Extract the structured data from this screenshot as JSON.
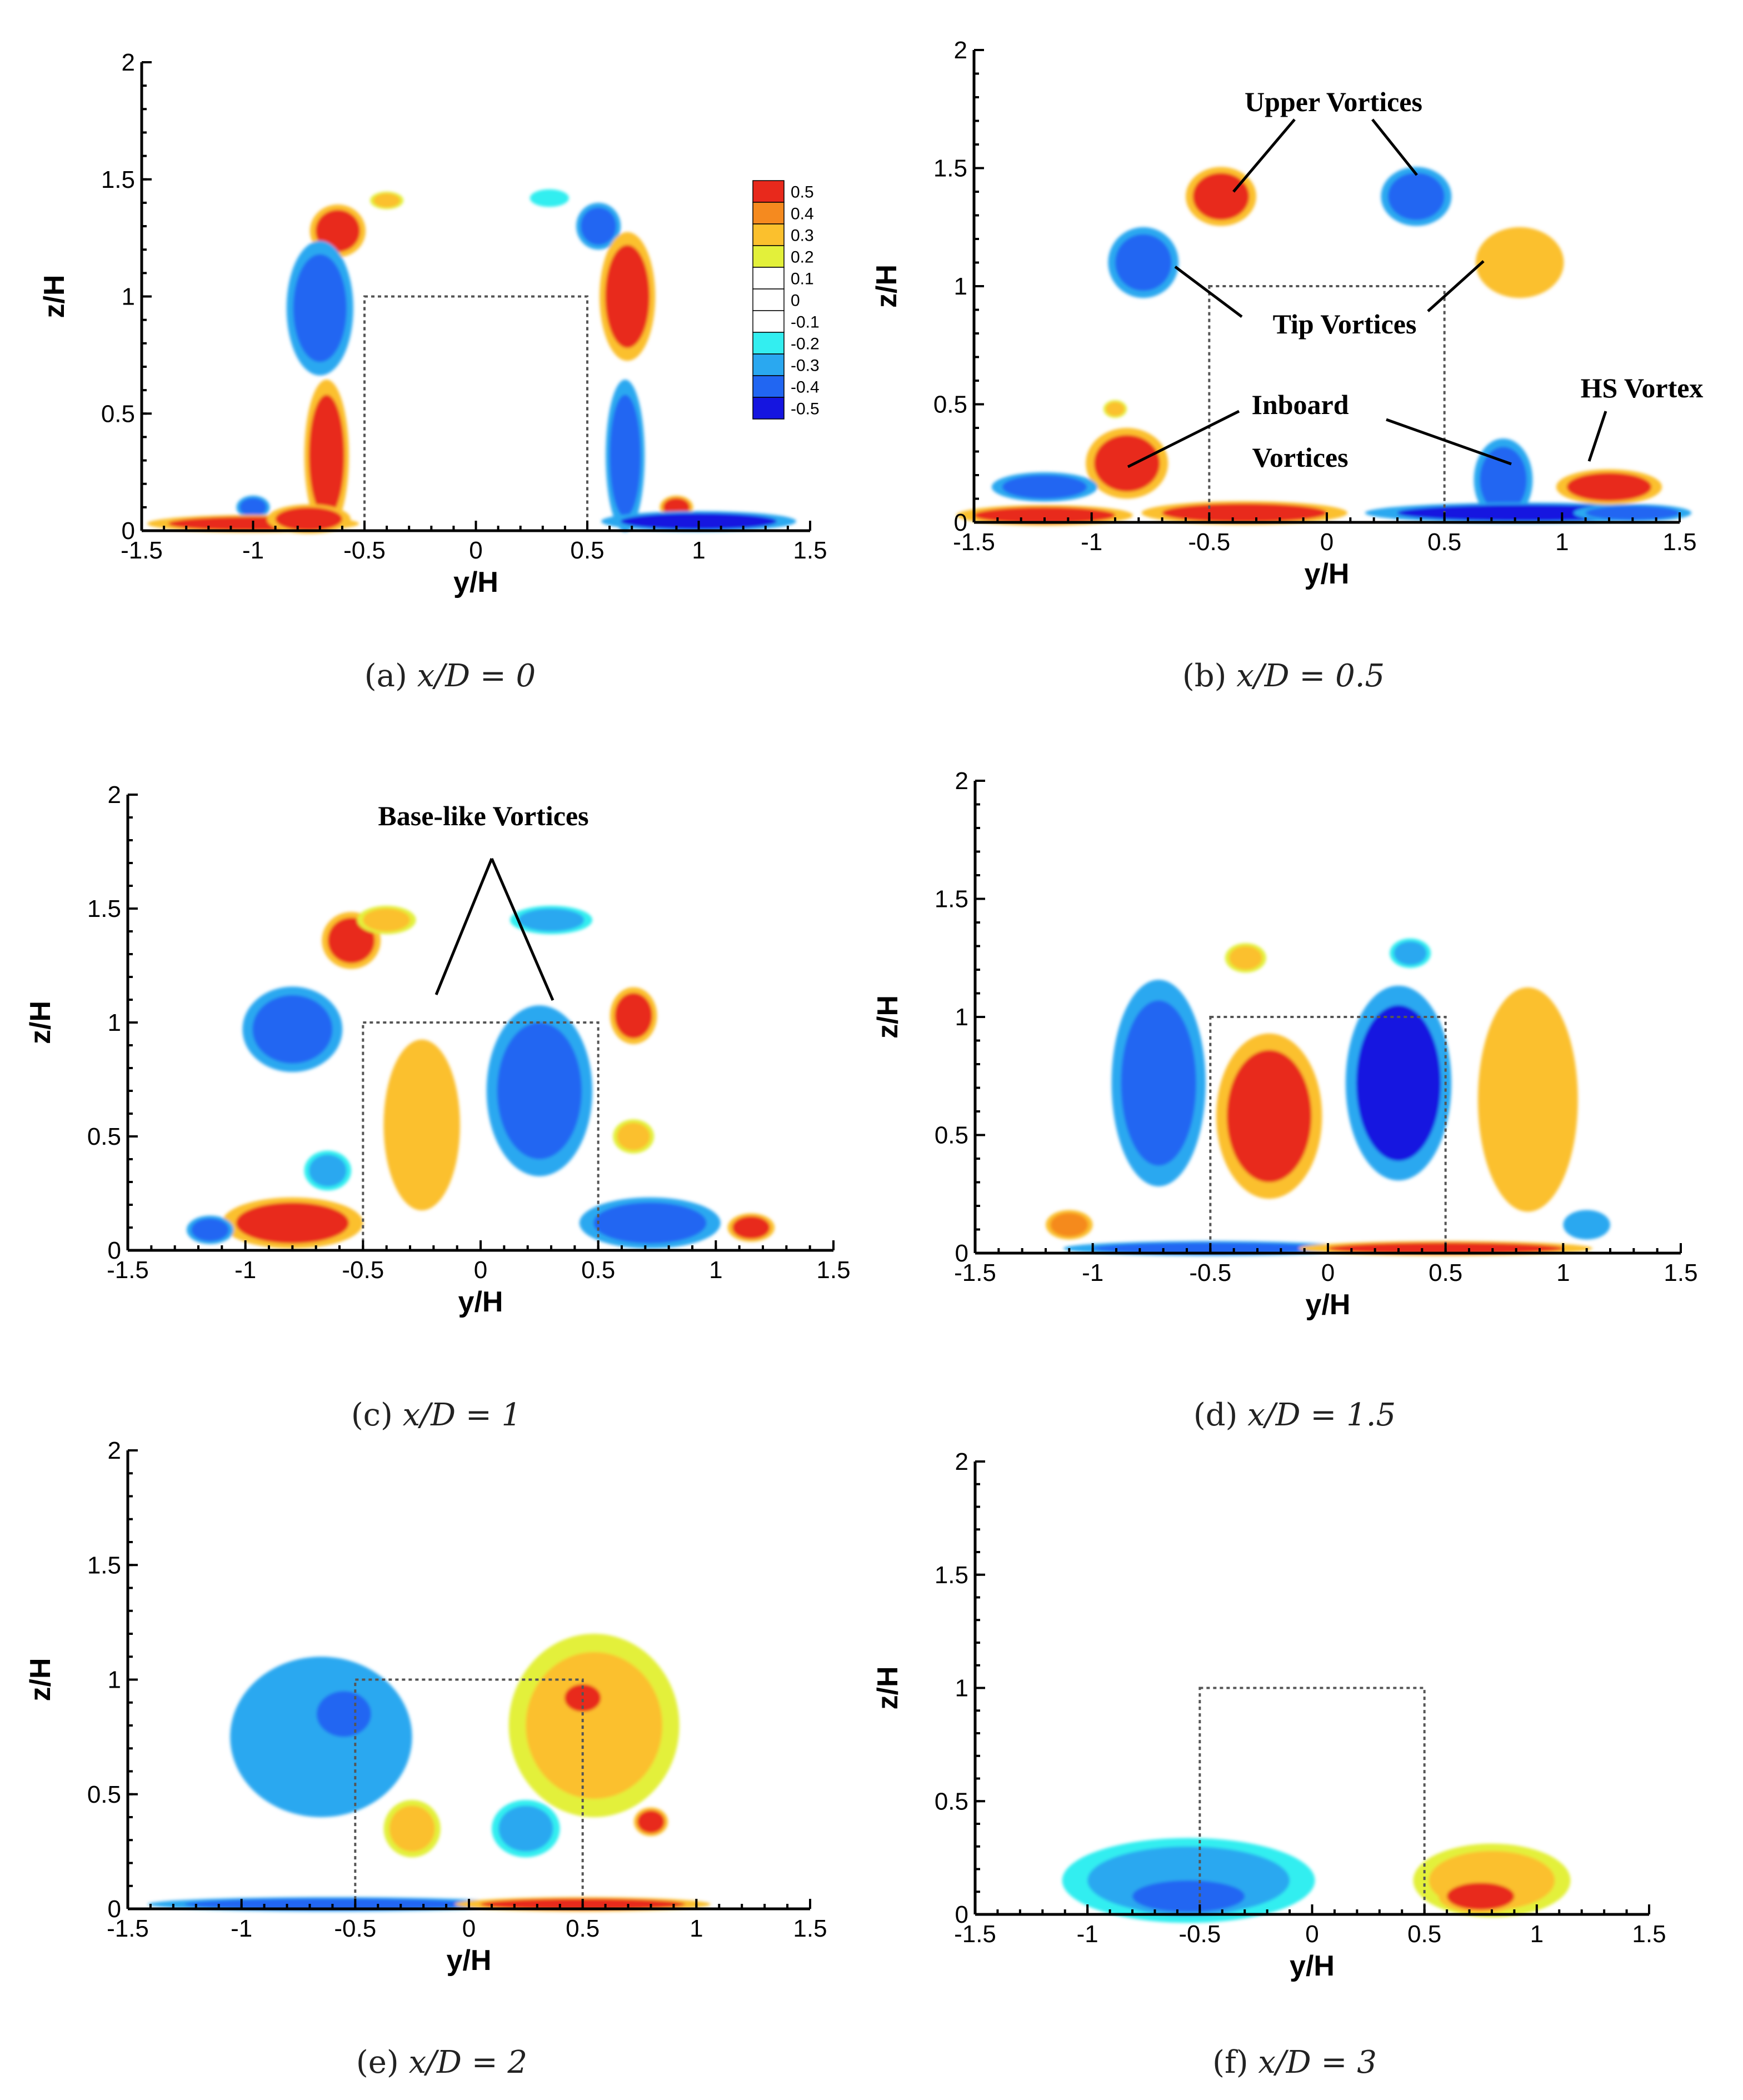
{
  "figure": {
    "panels": [
      {
        "id": "a",
        "caption_prefix": "(a) ",
        "caption_math": "x/D = 0",
        "xlabel": "y/H",
        "ylabel": "z/H"
      },
      {
        "id": "b",
        "caption_prefix": "(b) ",
        "caption_math": "x/D = 0.5",
        "xlabel": "y/H",
        "ylabel": "z/H"
      },
      {
        "id": "c",
        "caption_prefix": "(c) ",
        "caption_math": "x/D = 1",
        "xlabel": "y/H",
        "ylabel": "z/H"
      },
      {
        "id": "d",
        "caption_prefix": "(d) ",
        "caption_math": "x/D = 1.5",
        "xlabel": "y/H",
        "ylabel": "z/H"
      },
      {
        "id": "e",
        "caption_prefix": "(e) ",
        "caption_math": "x/D = 2",
        "xlabel": "y/H",
        "ylabel": "z/H"
      },
      {
        "id": "f",
        "caption_prefix": "(f) ",
        "caption_math": "x/D = 3",
        "xlabel": "y/H",
        "ylabel": "z/H"
      }
    ],
    "annotations": {
      "upper_vortices": "Upper Vortices",
      "tip_vortices": "Tip Vortices",
      "inboard_line1": "Inboard",
      "inboard_line2": "Vortices",
      "hs_vortex": "HS Vortex",
      "base_like_vortices": "Base-like Vortices"
    },
    "legend": {
      "levels": [
        "0.5",
        "0.4",
        "0.3",
        "0.2",
        "0.1",
        "0",
        "-0.1",
        "-0.2",
        "-0.3",
        "-0.4",
        "-0.5"
      ],
      "colors": [
        "#e8291c",
        "#f58a1f",
        "#fbc02d",
        "#e3f03a",
        "#ffffff",
        "#ffffff",
        "#ffffff",
        "#33eef0",
        "#2aa8f0",
        "#2166f2",
        "#1515e0"
      ]
    }
  },
  "chart_data": [
    {
      "panel": "a",
      "type": "heatmap",
      "title": "(a) x/D = 0",
      "xlabel": "y/H",
      "ylabel": "z/H",
      "xlim": [
        -1.5,
        1.5
      ],
      "ylim": [
        0,
        2
      ],
      "xticks": [
        "-1.5",
        "-1",
        "-0.5",
        "0",
        "0.5",
        "1",
        "1.5"
      ],
      "yticks": [
        "0",
        "0.5",
        "1",
        "1.5",
        "2"
      ],
      "model_box": {
        "y": [
          -0.5,
          0.5
        ],
        "z": [
          0,
          1
        ]
      },
      "colorbar_levels": [
        0.5,
        0.4,
        0.3,
        0.2,
        0.1,
        0,
        -0.1,
        -0.2,
        -0.3,
        -0.4,
        -0.5
      ],
      "blobs": [
        {
          "y": -0.62,
          "z": 1.28,
          "w": 0.1,
          "h": 0.09,
          "value": 0.45
        },
        {
          "y": -0.4,
          "z": 1.41,
          "w": 0.06,
          "h": 0.03,
          "value": 0.25
        },
        {
          "y": -0.7,
          "z": 0.95,
          "w": 0.12,
          "h": 0.23,
          "value": -0.45
        },
        {
          "y": -0.67,
          "z": 0.32,
          "w": 0.08,
          "h": 0.26,
          "value": 0.5
        },
        {
          "y": -1.0,
          "z": 0.1,
          "w": 0.06,
          "h": 0.04,
          "value": -0.4
        },
        {
          "y": -1.0,
          "z": 0.03,
          "w": 0.38,
          "h": 0.03,
          "value": 0.5
        },
        {
          "y": -0.75,
          "z": 0.05,
          "w": 0.15,
          "h": 0.05,
          "value": 0.5
        },
        {
          "y": 0.55,
          "z": 1.3,
          "w": 0.08,
          "h": 0.08,
          "value": -0.45
        },
        {
          "y": 0.33,
          "z": 1.42,
          "w": 0.07,
          "h": 0.03,
          "value": -0.25
        },
        {
          "y": 0.68,
          "z": 1.0,
          "w": 0.1,
          "h": 0.22,
          "value": 0.5
        },
        {
          "y": 0.67,
          "z": 0.32,
          "w": 0.07,
          "h": 0.26,
          "value": -0.45
        },
        {
          "y": 0.9,
          "z": 0.1,
          "w": 0.06,
          "h": 0.04,
          "value": 0.45
        },
        {
          "y": 1.0,
          "z": 0.04,
          "w": 0.35,
          "h": 0.035,
          "value": -0.5
        }
      ]
    },
    {
      "panel": "b",
      "type": "heatmap",
      "title": "(b) x/D = 0.5",
      "xlabel": "y/H",
      "ylabel": "z/H",
      "xlim": [
        -1.5,
        1.5
      ],
      "ylim": [
        0,
        2
      ],
      "xticks": [
        "-1.5",
        "-1",
        "-0.5",
        "0",
        "0.5",
        "1",
        "1.5"
      ],
      "yticks": [
        "0",
        "0.5",
        "1",
        "1.5",
        "2"
      ],
      "model_box": {
        "y": [
          -0.5,
          0.5
        ],
        "z": [
          0,
          1
        ]
      },
      "blobs": [
        {
          "y": -0.45,
          "z": 1.38,
          "w": 0.12,
          "h": 0.1,
          "value": 0.45
        },
        {
          "y": -0.78,
          "z": 1.1,
          "w": 0.12,
          "h": 0.12,
          "value": -0.4
        },
        {
          "y": 0.38,
          "z": 1.38,
          "w": 0.12,
          "h": 0.1,
          "value": -0.4
        },
        {
          "y": 0.82,
          "z": 1.1,
          "w": 0.15,
          "h": 0.12,
          "value": 0.35
        },
        {
          "y": -0.85,
          "z": 0.25,
          "w": 0.14,
          "h": 0.12,
          "value": 0.5
        },
        {
          "y": -0.9,
          "z": 0.48,
          "w": 0.04,
          "h": 0.03,
          "value": 0.3
        },
        {
          "y": -1.2,
          "z": 0.15,
          "w": 0.18,
          "h": 0.05,
          "value": -0.45
        },
        {
          "y": -1.2,
          "z": 0.03,
          "w": 0.3,
          "h": 0.035,
          "value": 0.5
        },
        {
          "y": -0.35,
          "z": 0.04,
          "w": 0.35,
          "h": 0.04,
          "value": 0.5
        },
        {
          "y": 0.75,
          "z": 0.18,
          "w": 0.1,
          "h": 0.14,
          "value": -0.4
        },
        {
          "y": 0.85,
          "z": 0.04,
          "w": 0.55,
          "h": 0.035,
          "value": -0.5
        },
        {
          "y": 1.2,
          "z": 0.15,
          "w": 0.18,
          "h": 0.06,
          "value": 0.5
        },
        {
          "y": 1.3,
          "z": 0.04,
          "w": 0.2,
          "h": 0.03,
          "value": -0.45
        }
      ]
    },
    {
      "panel": "c",
      "type": "heatmap",
      "title": "(c) x/D = 1",
      "xlabel": "y/H",
      "ylabel": "z/H",
      "xlim": [
        -1.5,
        1.5
      ],
      "ylim": [
        0,
        2
      ],
      "xticks": [
        "-1.5",
        "-1",
        "-0.5",
        "0",
        "0.5",
        "1",
        "1.5"
      ],
      "yticks": [
        "0",
        "0.5",
        "1",
        "1.5",
        "2"
      ],
      "model_box": {
        "y": [
          -0.5,
          0.5
        ],
        "z": [
          0,
          1
        ]
      },
      "blobs": [
        {
          "y": -0.55,
          "z": 1.36,
          "w": 0.1,
          "h": 0.1,
          "value": 0.45
        },
        {
          "y": -0.4,
          "z": 1.45,
          "w": 0.1,
          "h": 0.05,
          "value": 0.25
        },
        {
          "y": 0.3,
          "z": 1.45,
          "w": 0.14,
          "h": 0.05,
          "value": -0.3
        },
        {
          "y": -0.8,
          "z": 0.97,
          "w": 0.17,
          "h": 0.15,
          "value": -0.45
        },
        {
          "y": -0.65,
          "z": 0.35,
          "w": 0.08,
          "h": 0.07,
          "value": -0.3
        },
        {
          "y": -0.25,
          "z": 0.55,
          "w": 0.13,
          "h": 0.3,
          "value": 0.35
        },
        {
          "y": 0.25,
          "z": 0.7,
          "w": 0.18,
          "h": 0.3,
          "value": -0.45
        },
        {
          "y": 0.65,
          "z": 1.03,
          "w": 0.08,
          "h": 0.1,
          "value": 0.45
        },
        {
          "y": -0.8,
          "z": 0.12,
          "w": 0.24,
          "h": 0.09,
          "value": 0.5
        },
        {
          "y": -1.15,
          "z": 0.09,
          "w": 0.08,
          "h": 0.05,
          "value": -0.45
        },
        {
          "y": 0.72,
          "z": 0.12,
          "w": 0.24,
          "h": 0.09,
          "value": -0.45
        },
        {
          "y": 1.15,
          "z": 0.1,
          "w": 0.08,
          "h": 0.05,
          "value": 0.45
        },
        {
          "y": 0.65,
          "z": 0.5,
          "w": 0.07,
          "h": 0.06,
          "value": 0.25
        }
      ]
    },
    {
      "panel": "d",
      "type": "heatmap",
      "title": "(d) x/D = 1.5",
      "xlabel": "y/H",
      "ylabel": "z/H",
      "xlim": [
        -1.5,
        1.5
      ],
      "ylim": [
        0,
        2
      ],
      "xticks": [
        "-1.5",
        "-1",
        "-0.5",
        "0",
        "0.5",
        "1",
        "1.5"
      ],
      "yticks": [
        "0",
        "0.5",
        "1",
        "1.5",
        "2"
      ],
      "model_box": {
        "y": [
          -0.5,
          0.5
        ],
        "z": [
          0,
          1
        ]
      },
      "blobs": [
        {
          "y": -0.72,
          "z": 0.72,
          "w": 0.16,
          "h": 0.35,
          "value": -0.45
        },
        {
          "y": -0.25,
          "z": 0.58,
          "w": 0.18,
          "h": 0.28,
          "value": 0.5
        },
        {
          "y": 0.3,
          "z": 0.72,
          "w": 0.18,
          "h": 0.33,
          "value": -0.5
        },
        {
          "y": 0.85,
          "z": 0.65,
          "w": 0.17,
          "h": 0.38,
          "value": 0.35
        },
        {
          "y": -0.35,
          "z": 1.25,
          "w": 0.07,
          "h": 0.05,
          "value": 0.3
        },
        {
          "y": 0.35,
          "z": 1.27,
          "w": 0.07,
          "h": 0.05,
          "value": -0.3
        },
        {
          "y": -1.1,
          "z": 0.12,
          "w": 0.08,
          "h": 0.05,
          "value": 0.4
        },
        {
          "y": 1.1,
          "z": 0.12,
          "w": 0.08,
          "h": 0.05,
          "value": -0.35
        },
        {
          "y": -0.5,
          "z": 0.02,
          "w": 0.5,
          "h": 0.025,
          "value": -0.45
        },
        {
          "y": 0.5,
          "z": 0.02,
          "w": 0.5,
          "h": 0.025,
          "value": 0.5
        }
      ]
    },
    {
      "panel": "e",
      "type": "heatmap",
      "title": "(e) x/D = 2",
      "xlabel": "y/H",
      "ylabel": "z/H",
      "xlim": [
        -1.5,
        1.5
      ],
      "ylim": [
        0,
        2
      ],
      "xticks": [
        "-1.5",
        "-1",
        "-0.5",
        "0",
        "0.5",
        "1",
        "1.5"
      ],
      "yticks": [
        "0",
        "0.5",
        "1",
        "1.5",
        "2"
      ],
      "model_box": {
        "y": [
          -0.5,
          0.5
        ],
        "z": [
          0,
          1
        ]
      },
      "blobs": [
        {
          "y": -0.65,
          "z": 0.75,
          "w": 0.32,
          "h": 0.28,
          "value": -0.35
        },
        {
          "y": -0.55,
          "z": 0.85,
          "w": 0.12,
          "h": 0.1,
          "value": -0.45
        },
        {
          "y": 0.55,
          "z": 0.8,
          "w": 0.3,
          "h": 0.32,
          "value": 0.3
        },
        {
          "y": 0.5,
          "z": 0.92,
          "w": 0.08,
          "h": 0.06,
          "value": 0.5
        },
        {
          "y": 0.8,
          "z": 0.38,
          "w": 0.06,
          "h": 0.05,
          "value": 0.45
        },
        {
          "y": -0.25,
          "z": 0.35,
          "w": 0.1,
          "h": 0.1,
          "value": 0.25
        },
        {
          "y": 0.25,
          "z": 0.35,
          "w": 0.12,
          "h": 0.1,
          "value": -0.3
        },
        {
          "y": -0.6,
          "z": 0.02,
          "w": 0.65,
          "h": 0.025,
          "value": -0.45
        },
        {
          "y": 0.5,
          "z": 0.02,
          "w": 0.45,
          "h": 0.025,
          "value": 0.5
        }
      ]
    },
    {
      "panel": "f",
      "type": "heatmap",
      "title": "(f) x/D = 3",
      "xlabel": "y/H",
      "ylabel": "z/H",
      "xlim": [
        -1.5,
        1.5
      ],
      "ylim": [
        0,
        2
      ],
      "xticks": [
        "-1.5",
        "-1",
        "-0.5",
        "0",
        "0.5",
        "1",
        "1.5"
      ],
      "yticks": [
        "0",
        "0.5",
        "1",
        "1.5",
        "2"
      ],
      "model_box": {
        "y": [
          -0.5,
          0.5
        ],
        "z": [
          0,
          1
        ]
      },
      "blobs": [
        {
          "y": -0.55,
          "z": 0.15,
          "w": 0.45,
          "h": 0.15,
          "value": -0.3
        },
        {
          "y": -0.55,
          "z": 0.08,
          "w": 0.25,
          "h": 0.07,
          "value": -0.4
        },
        {
          "y": 0.8,
          "z": 0.15,
          "w": 0.28,
          "h": 0.13,
          "value": 0.3
        },
        {
          "y": 0.75,
          "z": 0.08,
          "w": 0.15,
          "h": 0.06,
          "value": 0.45
        }
      ]
    }
  ]
}
